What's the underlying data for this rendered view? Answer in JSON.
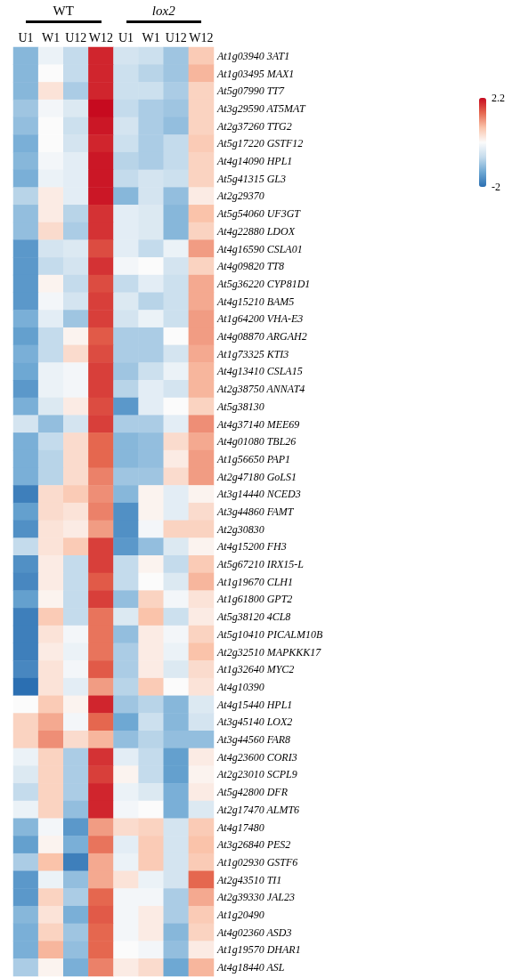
{
  "chart_data": {
    "type": "heatmap",
    "categories": [
      "U1",
      "W1",
      "U12",
      "W12",
      "U1",
      "W1",
      "U12",
      "W12"
    ],
    "annotations": [
      "WT",
      "lox2"
    ],
    "y_categories": [
      "At1g03940 3AT1",
      "At1g03495 MAX1",
      "At5g07990 TT7",
      "At3g29590 AT5MAT",
      "At2g37260 TTG2",
      "At5g17220 GSTF12",
      "At4g14090 HPL1",
      "At5g41315 GL3",
      "At2g29370",
      "At5g54060 UF3GT",
      "At4g22880 LDOX",
      "At4g16590 CSLA01",
      "At4g09820 TT8",
      "At5g36220 CYP81D1",
      "At4g15210 BAM5",
      "At1g64200 VHA-E3",
      "At4g08870 ARGAH2",
      "At1g73325 KTI3",
      "At4g13410 CSLA15",
      "At2g38750 ANNAT4",
      "At5g38130",
      "At4g37140 MEE69",
      "At4g01080 TBL26",
      "At1g56650 PAP1",
      "At2g47180 GoLS1",
      "At3g14440 NCED3",
      "At3g44860 FAMT",
      "At2g30830",
      "At4g15200 FH3",
      "At5g67210 IRX15-L",
      "At1g19670 CLH1",
      "At1g61800 GPT2",
      "At5g38120 4CL8",
      "At5g10410 PICALM10B",
      "At2g32510 MAPKKK17",
      "At1g32640 MYC2",
      "At4g10390",
      "At4g15440 HPL1",
      "At3g45140 LOX2",
      "At3g44560 FAR8",
      "At4g23600 CORI3",
      "At2g23010 SCPL9",
      "At5g42800 DFR",
      "At2g17470 ALMT6",
      "At4g17480",
      "At3g26840 PES2",
      "At1g02930 GSTF6",
      "At2g43510 TI1",
      "At2g39330 JAL23",
      "At1g20490",
      "At4g02360 ASD3",
      "At1g19570 DHAR1",
      "At4g18440 ASL"
    ],
    "cells": [
      [
        -1.1,
        -0.1,
        -0.6,
        2.0,
        -0.4,
        -0.5,
        -0.9,
        0.7
      ],
      [
        -1.1,
        0.1,
        -0.6,
        2.0,
        -0.5,
        -0.7,
        -0.9,
        0.9
      ],
      [
        -1.1,
        0.4,
        -0.8,
        2.0,
        -0.5,
        -0.5,
        -0.8,
        0.6
      ],
      [
        -0.9,
        0.0,
        -0.3,
        2.2,
        -0.6,
        -0.8,
        -0.9,
        0.6
      ],
      [
        -1.0,
        0.1,
        -0.5,
        2.1,
        -0.4,
        -0.8,
        -1.0,
        0.6
      ],
      [
        -1.2,
        0.1,
        -0.4,
        2.0,
        -0.5,
        -0.8,
        -0.6,
        0.7
      ],
      [
        -1.1,
        0.0,
        -0.2,
        2.1,
        -0.7,
        -0.8,
        -0.6,
        0.6
      ],
      [
        -1.2,
        -0.1,
        -0.2,
        2.1,
        -0.6,
        -0.4,
        -0.5,
        0.6
      ],
      [
        -0.7,
        0.3,
        -0.2,
        2.1,
        -1.1,
        -0.4,
        -1.0,
        0.3
      ],
      [
        -1.0,
        0.3,
        -0.7,
        1.9,
        -0.2,
        -0.3,
        -1.1,
        0.8
      ],
      [
        -1.0,
        0.5,
        -0.8,
        1.9,
        -0.2,
        -0.3,
        -1.1,
        0.6
      ],
      [
        -1.5,
        -0.4,
        -0.3,
        1.7,
        -0.2,
        -0.6,
        -0.1,
        1.1
      ],
      [
        -1.5,
        -0.6,
        -0.4,
        1.9,
        0.0,
        0.1,
        -0.4,
        0.6
      ],
      [
        -1.5,
        0.2,
        -0.6,
        1.7,
        -0.6,
        -0.2,
        -0.5,
        1.0
      ],
      [
        -1.5,
        0.0,
        -0.4,
        1.8,
        -0.3,
        -0.7,
        -0.5,
        1.0
      ],
      [
        -1.2,
        -0.2,
        -0.9,
        1.8,
        -0.4,
        -0.1,
        -0.5,
        1.1
      ],
      [
        -1.4,
        -0.6,
        0.2,
        1.6,
        -0.8,
        -0.8,
        0.1,
        1.1
      ],
      [
        -1.2,
        -0.6,
        0.5,
        1.7,
        -0.8,
        -0.8,
        -0.4,
        1.0
      ],
      [
        -1.3,
        -0.1,
        0.0,
        1.8,
        -0.9,
        -0.5,
        -0.1,
        0.9
      ],
      [
        -1.5,
        -0.1,
        0.0,
        1.8,
        -0.7,
        -0.2,
        -0.4,
        0.9
      ],
      [
        -1.2,
        -0.3,
        0.3,
        1.7,
        -1.5,
        -0.2,
        0.1,
        0.6
      ],
      [
        -0.4,
        -1.0,
        -0.4,
        1.8,
        -0.8,
        -0.8,
        -0.2,
        1.2
      ],
      [
        -1.2,
        -0.6,
        0.5,
        1.5,
        -1.1,
        -1.0,
        0.5,
        1.0
      ],
      [
        -1.2,
        -0.7,
        0.5,
        1.5,
        -1.1,
        -1.0,
        0.3,
        1.1
      ],
      [
        -1.2,
        -0.7,
        0.5,
        1.3,
        -0.9,
        -0.9,
        0.5,
        1.1
      ],
      [
        -1.8,
        0.5,
        0.7,
        1.2,
        -1.1,
        0.2,
        -0.2,
        0.2
      ],
      [
        -1.4,
        0.5,
        0.4,
        1.3,
        -1.6,
        0.2,
        -0.2,
        0.5
      ],
      [
        -1.6,
        0.4,
        0.3,
        1.1,
        -1.6,
        0.0,
        0.6,
        0.6
      ],
      [
        -0.6,
        0.4,
        0.7,
        1.8,
        -1.5,
        -1.0,
        -0.3,
        0.2
      ],
      [
        -1.6,
        0.3,
        -0.6,
        1.8,
        -0.6,
        0.2,
        -0.6,
        0.7
      ],
      [
        -1.7,
        0.3,
        -0.6,
        1.6,
        -0.6,
        0.1,
        -0.3,
        0.9
      ],
      [
        -1.4,
        0.2,
        -0.6,
        1.8,
        -1.0,
        0.6,
        0.0,
        0.4
      ],
      [
        -1.8,
        0.7,
        -0.6,
        1.4,
        -0.3,
        0.8,
        -0.5,
        0.3
      ],
      [
        -1.8,
        0.4,
        0.0,
        1.4,
        -1.0,
        0.3,
        0.0,
        0.6
      ],
      [
        -1.8,
        0.3,
        -0.1,
        1.4,
        -0.8,
        0.3,
        -0.1,
        0.8
      ],
      [
        -1.7,
        0.4,
        0.0,
        1.6,
        -0.8,
        0.3,
        -0.3,
        0.5
      ],
      [
        -2.0,
        0.4,
        -0.2,
        1.1,
        -0.7,
        0.7,
        0.1,
        0.4
      ],
      [
        0.1,
        0.7,
        0.2,
        2.0,
        -0.9,
        -0.7,
        -1.1,
        -0.3
      ],
      [
        0.6,
        1.0,
        0.0,
        1.5,
        -1.3,
        -0.5,
        -1.1,
        -0.4
      ],
      [
        0.6,
        1.2,
        0.5,
        0.9,
        -1.0,
        -0.7,
        -1.0,
        -1.0
      ],
      [
        -0.1,
        0.6,
        -0.8,
        1.9,
        -0.2,
        -0.6,
        -1.4,
        0.3
      ],
      [
        -0.3,
        0.6,
        -0.8,
        1.8,
        0.2,
        -0.6,
        -1.4,
        0.2
      ],
      [
        -0.6,
        0.6,
        -0.8,
        2.0,
        -0.1,
        -0.3,
        -1.2,
        0.3
      ],
      [
        -0.1,
        0.6,
        -1.0,
        2.0,
        0.0,
        0.1,
        -1.2,
        -0.3
      ],
      [
        -1.1,
        0.0,
        -1.5,
        1.1,
        0.5,
        0.6,
        -0.4,
        0.7
      ],
      [
        -1.4,
        0.2,
        -1.2,
        1.4,
        -0.2,
        0.7,
        -0.4,
        0.8
      ],
      [
        -0.8,
        0.8,
        -1.8,
        1.0,
        -0.1,
        0.7,
        -0.4,
        0.7
      ],
      [
        -1.5,
        -0.1,
        -1.0,
        1.0,
        0.4,
        -0.1,
        -0.4,
        1.5
      ],
      [
        -1.5,
        0.6,
        -0.8,
        1.5,
        0.0,
        0.0,
        -0.8,
        1.0
      ],
      [
        -1.1,
        0.4,
        -1.2,
        1.6,
        0.0,
        0.3,
        -0.8,
        0.7
      ],
      [
        -1.2,
        0.6,
        -0.9,
        1.5,
        0.0,
        0.3,
        -1.1,
        0.6
      ],
      [
        -1.2,
        0.9,
        -1.0,
        1.5,
        0.1,
        0.0,
        -1.0,
        0.3
      ],
      [
        -0.8,
        0.2,
        -1.2,
        1.3,
        0.3,
        0.5,
        -1.3,
        0.9
      ]
    ],
    "clim": [
      -2,
      2.2
    ],
    "cticks": [
      -2,
      2.2
    ]
  }
}
